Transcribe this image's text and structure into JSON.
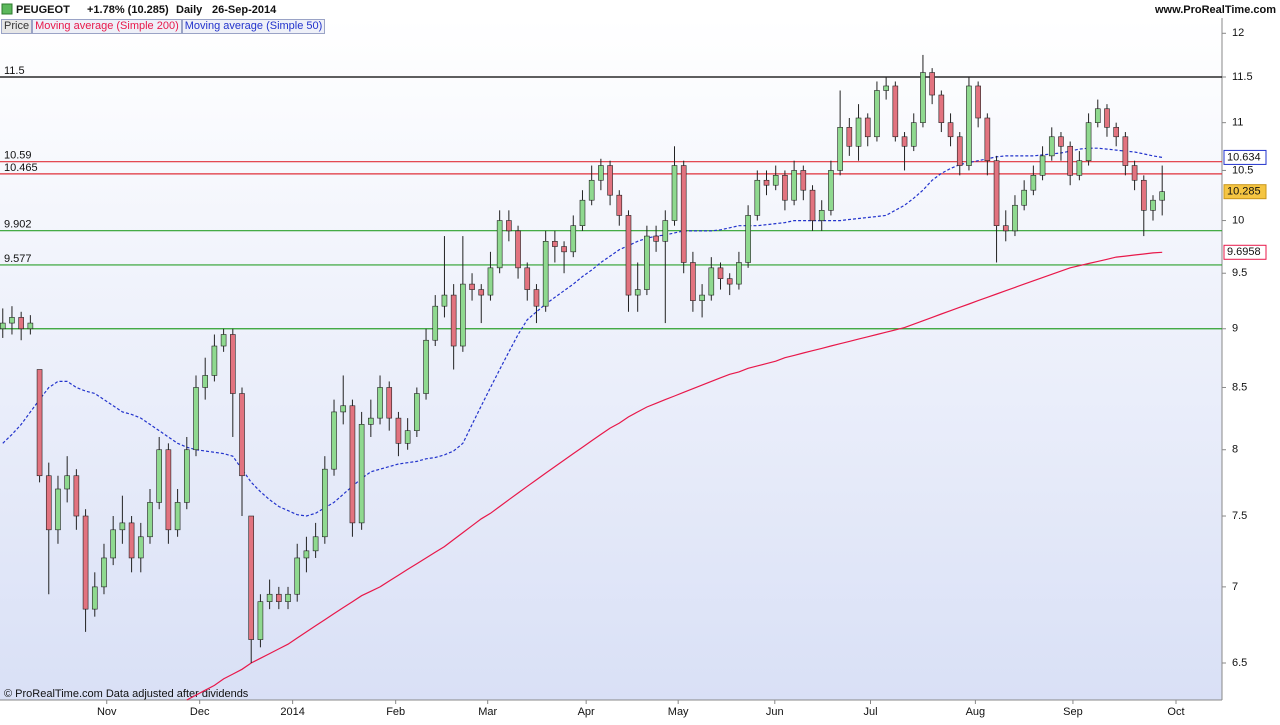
{
  "chart_data": {
    "type": "candlestick",
    "symbol": "PEUGEOT",
    "change": "+1.78% (10.285)",
    "period": "Daily",
    "date": "26-Sep-2014",
    "site": "www.ProRealTime.com",
    "footer": "© ProRealTime.com  Data adjusted after dividends",
    "price_label": "Price",
    "log_scale": true,
    "up_color": "#8fd98f",
    "down_color": "#e2737f",
    "ylim": [
      6.27,
      12.18
    ],
    "yticks": [
      6.5,
      7,
      7.5,
      8,
      8.5,
      9,
      9.5,
      10,
      10.5,
      11,
      11.5,
      12
    ],
    "xlim": [
      -0.3,
      132.5
    ],
    "xticks": [
      {
        "value": 11.3,
        "label": "Nov"
      },
      {
        "value": 21.4,
        "label": "Dec"
      },
      {
        "value": 31.5,
        "label": "2014"
      },
      {
        "value": 42.7,
        "label": "Feb"
      },
      {
        "value": 52.7,
        "label": "Mar"
      },
      {
        "value": 63.4,
        "label": "Apr"
      },
      {
        "value": 73.4,
        "label": "May"
      },
      {
        "value": 83.9,
        "label": "Jun"
      },
      {
        "value": 94.3,
        "label": "Jul"
      },
      {
        "value": 105.7,
        "label": "Aug"
      },
      {
        "value": 116.3,
        "label": "Sep"
      },
      {
        "value": 127.5,
        "label": "Oct"
      }
    ],
    "levels": [
      {
        "value": 11.5,
        "label": "11.5",
        "color": "#000000"
      },
      {
        "value": 10.59,
        "label": "10.59",
        "color": "#e0303a"
      },
      {
        "value": 10.465,
        "label": "10.465",
        "color": "#e0303a"
      },
      {
        "value": 9.902,
        "label": "9.902",
        "color": "#2ca02c"
      },
      {
        "value": 9.577,
        "label": "9.577",
        "color": "#2ca02c"
      },
      {
        "value": 9,
        "color": "#2ca02c"
      }
    ],
    "candles": [
      [
        9.0,
        9.18,
        8.92,
        9.05
      ],
      [
        9.05,
        9.2,
        8.95,
        9.1
      ],
      [
        9.1,
        9.15,
        8.9,
        9.0
      ],
      [
        9.0,
        9.12,
        8.95,
        9.05
      ],
      [
        8.65,
        8.65,
        7.75,
        7.8
      ],
      [
        7.8,
        7.9,
        6.95,
        7.4
      ],
      [
        7.4,
        7.8,
        7.3,
        7.7
      ],
      [
        7.7,
        7.95,
        7.6,
        7.8
      ],
      [
        7.8,
        7.85,
        7.4,
        7.5
      ],
      [
        7.5,
        7.55,
        6.7,
        6.85
      ],
      [
        6.85,
        7.1,
        6.8,
        7.0
      ],
      [
        7.0,
        7.3,
        6.95,
        7.2
      ],
      [
        7.2,
        7.5,
        7.15,
        7.4
      ],
      [
        7.4,
        7.65,
        7.3,
        7.45
      ],
      [
        7.45,
        7.5,
        7.1,
        7.2
      ],
      [
        7.2,
        7.45,
        7.1,
        7.35
      ],
      [
        7.35,
        7.7,
        7.3,
        7.6
      ],
      [
        7.6,
        8.1,
        7.55,
        8.0
      ],
      [
        8.0,
        8.05,
        7.3,
        7.4
      ],
      [
        7.4,
        7.7,
        7.35,
        7.6
      ],
      [
        7.6,
        8.1,
        7.55,
        8.0
      ],
      [
        8.0,
        8.6,
        7.95,
        8.5
      ],
      [
        8.5,
        8.75,
        8.4,
        8.6
      ],
      [
        8.6,
        8.95,
        8.55,
        8.85
      ],
      [
        8.85,
        9.0,
        8.8,
        8.95
      ],
      [
        8.95,
        9.0,
        8.1,
        8.45
      ],
      [
        8.45,
        8.5,
        7.5,
        7.8
      ],
      [
        7.5,
        7.5,
        6.5,
        6.65
      ],
      [
        6.65,
        6.95,
        6.6,
        6.9
      ],
      [
        6.9,
        7.05,
        6.85,
        6.95
      ],
      [
        6.95,
        7.0,
        6.85,
        6.9
      ],
      [
        6.9,
        7.0,
        6.85,
        6.95
      ],
      [
        6.95,
        7.3,
        6.9,
        7.2
      ],
      [
        7.2,
        7.35,
        7.1,
        7.25
      ],
      [
        7.25,
        7.45,
        7.2,
        7.35
      ],
      [
        7.35,
        7.95,
        7.3,
        7.85
      ],
      [
        7.85,
        8.4,
        7.8,
        8.3
      ],
      [
        8.3,
        8.6,
        8.2,
        8.35
      ],
      [
        8.35,
        8.4,
        7.35,
        7.45
      ],
      [
        7.45,
        8.3,
        7.4,
        8.2
      ],
      [
        8.2,
        8.4,
        8.1,
        8.25
      ],
      [
        8.25,
        8.6,
        8.2,
        8.5
      ],
      [
        8.5,
        8.55,
        8.15,
        8.25
      ],
      [
        8.25,
        8.3,
        7.95,
        8.05
      ],
      [
        8.05,
        8.25,
        8.0,
        8.15
      ],
      [
        8.15,
        8.5,
        8.1,
        8.45
      ],
      [
        8.45,
        9.0,
        8.4,
        8.9
      ],
      [
        8.9,
        9.3,
        8.85,
        9.2
      ],
      [
        9.2,
        9.85,
        9.1,
        9.3
      ],
      [
        9.3,
        9.4,
        8.65,
        8.85
      ],
      [
        8.85,
        9.85,
        8.8,
        9.4
      ],
      [
        9.4,
        9.5,
        9.25,
        9.35
      ],
      [
        9.35,
        9.4,
        9.05,
        9.3
      ],
      [
        9.3,
        9.7,
        9.25,
        9.55
      ],
      [
        9.55,
        10.1,
        9.5,
        10.0
      ],
      [
        10.0,
        10.1,
        9.8,
        9.9
      ],
      [
        9.9,
        9.95,
        9.45,
        9.55
      ],
      [
        9.55,
        9.6,
        9.25,
        9.35
      ],
      [
        9.35,
        9.4,
        9.05,
        9.2
      ],
      [
        9.2,
        9.9,
        9.15,
        9.8
      ],
      [
        9.8,
        9.9,
        9.6,
        9.75
      ],
      [
        9.75,
        9.8,
        9.5,
        9.7
      ],
      [
        9.7,
        10.05,
        9.65,
        9.95
      ],
      [
        9.95,
        10.3,
        9.9,
        10.2
      ],
      [
        10.2,
        10.55,
        10.15,
        10.4
      ],
      [
        10.4,
        10.62,
        10.3,
        10.55
      ],
      [
        10.55,
        10.6,
        10.15,
        10.25
      ],
      [
        10.25,
        10.3,
        9.95,
        10.05
      ],
      [
        10.05,
        10.1,
        9.15,
        9.3
      ],
      [
        9.3,
        9.6,
        9.15,
        9.35
      ],
      [
        9.35,
        9.95,
        9.3,
        9.85
      ],
      [
        9.85,
        9.95,
        9.7,
        9.8
      ],
      [
        9.8,
        10.1,
        9.05,
        10.0
      ],
      [
        10.0,
        10.75,
        9.95,
        10.55
      ],
      [
        10.55,
        10.6,
        9.5,
        9.6
      ],
      [
        9.6,
        9.7,
        9.15,
        9.25
      ],
      [
        9.25,
        9.4,
        9.1,
        9.3
      ],
      [
        9.3,
        9.65,
        9.25,
        9.55
      ],
      [
        9.55,
        9.6,
        9.35,
        9.45
      ],
      [
        9.45,
        9.5,
        9.3,
        9.4
      ],
      [
        9.4,
        9.7,
        9.35,
        9.6
      ],
      [
        9.6,
        10.15,
        9.55,
        10.05
      ],
      [
        10.05,
        10.5,
        10.0,
        10.4
      ],
      [
        10.4,
        10.5,
        10.25,
        10.35
      ],
      [
        10.35,
        10.55,
        10.3,
        10.45
      ],
      [
        10.45,
        10.5,
        10.1,
        10.2
      ],
      [
        10.2,
        10.6,
        10.15,
        10.5
      ],
      [
        10.5,
        10.55,
        10.2,
        10.3
      ],
      [
        10.3,
        10.35,
        9.9,
        10.0
      ],
      [
        10.0,
        10.2,
        9.9,
        10.1
      ],
      [
        10.1,
        10.6,
        10.05,
        10.5
      ],
      [
        10.5,
        11.35,
        10.45,
        10.95
      ],
      [
        10.95,
        11.05,
        10.65,
        10.75
      ],
      [
        10.75,
        11.2,
        10.6,
        11.05
      ],
      [
        11.05,
        11.1,
        10.75,
        10.85
      ],
      [
        10.85,
        11.45,
        10.8,
        11.35
      ],
      [
        11.35,
        11.5,
        11.25,
        11.4
      ],
      [
        11.4,
        11.45,
        10.8,
        10.85
      ],
      [
        10.85,
        10.9,
        10.5,
        10.75
      ],
      [
        10.75,
        11.1,
        10.7,
        11.0
      ],
      [
        11.0,
        11.75,
        10.95,
        11.55
      ],
      [
        11.55,
        11.6,
        11.2,
        11.3
      ],
      [
        11.3,
        11.35,
        10.9,
        11.0
      ],
      [
        11.0,
        11.1,
        10.75,
        10.85
      ],
      [
        10.85,
        10.9,
        10.45,
        10.55
      ],
      [
        10.55,
        11.5,
        10.5,
        11.4
      ],
      [
        11.4,
        11.45,
        10.95,
        11.05
      ],
      [
        11.05,
        11.1,
        10.45,
        10.6
      ],
      [
        10.6,
        10.65,
        9.6,
        9.95
      ],
      [
        9.95,
        10.1,
        9.8,
        9.9
      ],
      [
        9.9,
        10.25,
        9.85,
        10.15
      ],
      [
        10.15,
        10.4,
        10.1,
        10.3
      ],
      [
        10.3,
        10.55,
        10.25,
        10.45
      ],
      [
        10.45,
        10.75,
        10.4,
        10.65
      ],
      [
        10.65,
        10.95,
        10.6,
        10.85
      ],
      [
        10.85,
        10.9,
        10.6,
        10.75
      ],
      [
        10.75,
        10.8,
        10.35,
        10.45
      ],
      [
        10.45,
        10.7,
        10.4,
        10.6
      ],
      [
        10.6,
        11.1,
        10.55,
        11.0
      ],
      [
        11.0,
        11.25,
        10.95,
        11.15
      ],
      [
        11.15,
        11.2,
        10.85,
        10.95
      ],
      [
        10.95,
        11.0,
        10.75,
        10.85
      ],
      [
        10.85,
        10.9,
        10.45,
        10.55
      ],
      [
        10.55,
        10.6,
        10.3,
        10.4
      ],
      [
        10.4,
        10.45,
        9.85,
        10.1
      ],
      [
        10.1,
        10.25,
        10.0,
        10.2
      ],
      [
        10.2,
        10.55,
        10.05,
        10.285
      ]
    ],
    "series": [
      {
        "name": "Moving average (Simple 200)",
        "color": "#e8184a",
        "dashed": false,
        "values": [
          null,
          null,
          null,
          null,
          null,
          null,
          null,
          null,
          null,
          null,
          null,
          null,
          null,
          null,
          null,
          null,
          null,
          null,
          null,
          null,
          6.27,
          6.3,
          6.33,
          6.36,
          6.4,
          6.43,
          6.46,
          6.5,
          6.53,
          6.56,
          6.59,
          6.62,
          6.66,
          6.7,
          6.74,
          6.78,
          6.82,
          6.86,
          6.9,
          6.94,
          6.97,
          7.0,
          7.04,
          7.08,
          7.12,
          7.16,
          7.2,
          7.24,
          7.28,
          7.33,
          7.38,
          7.43,
          7.48,
          7.52,
          7.57,
          7.62,
          7.67,
          7.72,
          7.77,
          7.82,
          7.87,
          7.92,
          7.97,
          8.02,
          8.07,
          8.12,
          8.17,
          8.21,
          8.26,
          8.3,
          8.34,
          8.37,
          8.4,
          8.43,
          8.46,
          8.49,
          8.52,
          8.55,
          8.58,
          8.61,
          8.63,
          8.66,
          8.68,
          8.7,
          8.72,
          8.75,
          8.77,
          8.79,
          8.81,
          8.83,
          8.85,
          8.87,
          8.89,
          8.91,
          8.93,
          8.95,
          8.97,
          8.99,
          9.01,
          9.04,
          9.07,
          9.1,
          9.13,
          9.16,
          9.19,
          9.22,
          9.25,
          9.28,
          9.31,
          9.34,
          9.37,
          9.4,
          9.43,
          9.46,
          9.49,
          9.52,
          9.55,
          9.57,
          9.59,
          9.61,
          9.63,
          9.65,
          9.66,
          9.67,
          9.68,
          9.69,
          9.6958
        ]
      },
      {
        "name": "Moving average (Simple 50)",
        "color": "#2233cc",
        "dashed": true,
        "values": [
          8.05,
          8.12,
          8.2,
          8.3,
          8.4,
          8.5,
          8.55,
          8.55,
          8.5,
          8.47,
          8.45,
          8.4,
          8.35,
          8.3,
          8.28,
          8.25,
          8.2,
          8.15,
          8.1,
          8.05,
          8.02,
          8.0,
          7.99,
          7.98,
          7.97,
          7.95,
          7.85,
          7.75,
          7.68,
          7.62,
          7.57,
          7.54,
          7.51,
          7.5,
          7.52,
          7.56,
          7.6,
          7.66,
          7.72,
          7.78,
          7.83,
          7.85,
          7.87,
          7.89,
          7.9,
          7.91,
          7.93,
          7.94,
          7.96,
          7.99,
          8.05,
          8.2,
          8.35,
          8.5,
          8.65,
          8.8,
          8.95,
          9.08,
          9.15,
          9.22,
          9.28,
          9.34,
          9.4,
          9.47,
          9.53,
          9.6,
          9.66,
          9.72,
          9.76,
          9.8,
          9.83,
          9.85,
          9.86,
          9.88,
          9.9,
          9.9,
          9.9,
          9.9,
          9.91,
          9.93,
          9.95,
          9.95,
          9.95,
          9.96,
          9.97,
          9.98,
          10.0,
          10.0,
          10.0,
          10.0,
          10.0,
          10.0,
          10.01,
          10.02,
          10.03,
          10.04,
          10.05,
          10.1,
          10.15,
          10.22,
          10.3,
          10.4,
          10.47,
          10.52,
          10.56,
          10.58,
          10.6,
          10.62,
          10.64,
          10.65,
          10.65,
          10.65,
          10.65,
          10.66,
          10.67,
          10.68,
          10.7,
          10.72,
          10.73,
          10.73,
          10.72,
          10.71,
          10.7,
          10.69,
          10.67,
          10.65,
          10.634
        ]
      }
    ]
  }
}
